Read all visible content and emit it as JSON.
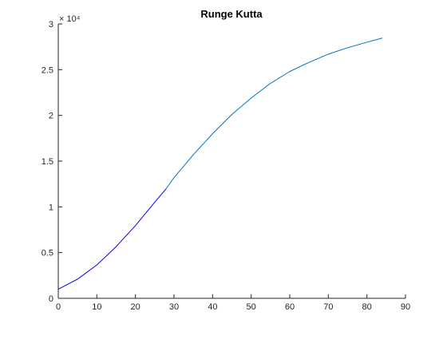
{
  "chart_data": {
    "type": "line",
    "title": "Runge Kutta",
    "xlabel": "",
    "ylabel": "",
    "xlim": [
      0,
      90
    ],
    "ylim": [
      0,
      30000
    ],
    "x_ticks": [
      0,
      10,
      20,
      30,
      40,
      50,
      60,
      70,
      80,
      90
    ],
    "x_tick_labels": [
      "0",
      "10",
      "20",
      "30",
      "40",
      "50",
      "60",
      "70",
      "80",
      "90"
    ],
    "y_ticks": [
      0,
      5000,
      10000,
      15000,
      20000,
      25000,
      30000
    ],
    "y_tick_labels": [
      "0",
      "0.5",
      "1",
      "1.5",
      "2",
      "2.5",
      "3"
    ],
    "y_exponent_label": "× 10⁴",
    "grid": false,
    "box": "open (left and bottom axes only)",
    "series": [
      {
        "segments": [
          {
            "color": "#0000ff",
            "x": [
              0,
              5,
              10,
              15,
              20,
              25,
              28
            ],
            "y": [
              1000,
              2100,
              3650,
              5650,
              7950,
              10500,
              12000
            ]
          },
          {
            "color": "#0072bd",
            "x": [
              28,
              30,
              35,
              40,
              45,
              50,
              55,
              60,
              65,
              70,
              75,
              80,
              84
            ],
            "y": [
              12000,
              13200,
              15700,
              18000,
              20100,
              21900,
              23500,
              24800,
              25800,
              26700,
              27400,
              28000,
              28450
            ]
          }
        ]
      }
    ]
  }
}
